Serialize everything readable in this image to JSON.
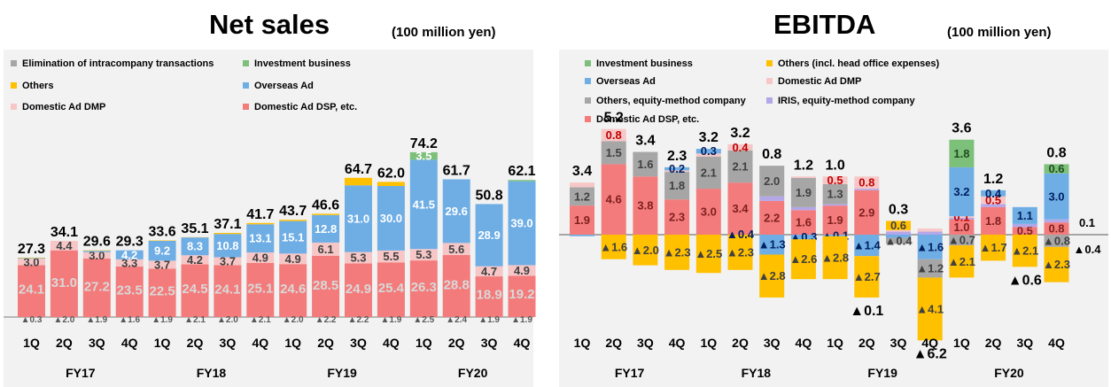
{
  "colors": {
    "dsp": "#f37b7b",
    "dmp": "#f7c7c7",
    "overseas": "#6faee5",
    "others": "#ffc000",
    "investment": "#7cc07a",
    "elim": "#a6a6a6",
    "iris": "#b4a7e8",
    "neg": "#ffc000"
  },
  "left": {
    "title": "Net sales",
    "unit": "(100 million yen)",
    "legend": [
      {
        "label": "Elimination of intracompany transactions",
        "color": "#a6a6a6"
      },
      {
        "label": "Investment business",
        "color": "#7cc07a"
      },
      {
        "label": "Others",
        "color": "#ffc000"
      },
      {
        "label": "Overseas Ad",
        "color": "#6faee5"
      },
      {
        "label": "Domestic Ad DMP",
        "color": "#f7c7c7"
      },
      {
        "label": "Domestic Ad DSP, etc.",
        "color": "#f37b7b"
      }
    ]
  },
  "right": {
    "title": "EBITDA",
    "unit": "(100 million yen)",
    "legend": [
      {
        "label": "Investment business",
        "color": "#7cc07a"
      },
      {
        "label": "Others (incl.  head office expenses)",
        "color": "#ffc000"
      },
      {
        "label": "Overseas Ad",
        "color": "#6faee5"
      },
      {
        "label": "Domestic Ad DMP",
        "color": "#f7c7c7"
      },
      {
        "label": "Others, equity-method company",
        "color": "#a6a6a6"
      },
      {
        "label": "IRIS, equity-method company",
        "color": "#b4a7e8"
      },
      {
        "label": "Domestic Ad DSP, etc.",
        "color": "#f37b7b"
      }
    ]
  },
  "chart_data": [
    {
      "type": "bar",
      "stacked": true,
      "title": "Net sales",
      "unit": "(100 million yen)",
      "categories": [
        "1Q",
        "2Q",
        "3Q",
        "4Q",
        "1Q",
        "2Q",
        "3Q",
        "4Q",
        "1Q",
        "2Q",
        "3Q",
        "4Q",
        "1Q",
        "2Q",
        "3Q",
        "4Q"
      ],
      "groups": [
        {
          "label": "FY17",
          "span": [
            0,
            3
          ]
        },
        {
          "label": "FY18",
          "span": [
            4,
            7
          ]
        },
        {
          "label": "FY19",
          "span": [
            8,
            11
          ]
        },
        {
          "label": "FY20",
          "span": [
            12,
            15
          ]
        }
      ],
      "series": [
        {
          "name": "Domestic Ad DSP, etc.",
          "key": "dsp",
          "values": [
            24.1,
            31.0,
            27.2,
            23.5,
            22.5,
            24.5,
            24.1,
            25.1,
            24.6,
            28.5,
            24.9,
            25.4,
            26.3,
            28.8,
            18.9,
            19.2
          ],
          "labels": [
            "24.1",
            "31.0",
            "27.2",
            "23.5",
            "22.5",
            "24.5",
            "24.1",
            "25.1",
            "24.6",
            "28.5",
            "24.9",
            "25.4",
            "26.3",
            "28.8",
            "18.9",
            "19.2"
          ]
        },
        {
          "name": "Domestic Ad DMP",
          "key": "dmp",
          "values": [
            3.0,
            4.4,
            3.0,
            3.3,
            3.7,
            4.2,
            3.7,
            4.9,
            4.9,
            6.1,
            5.3,
            5.5,
            5.3,
            5.6,
            4.7,
            4.9
          ],
          "labels": [
            "3.0",
            "4.4",
            "3.0",
            "3.3",
            "3.7",
            "4.2",
            "3.7",
            "4.9",
            "4.9",
            "6.1",
            "5.3",
            "5.5",
            "5.3",
            "5.6",
            "4.7",
            "4.9"
          ]
        },
        {
          "name": "Overseas Ad",
          "key": "overseas",
          "values": [
            0.3,
            0.0,
            0.6,
            4.2,
            9.2,
            8.3,
            10.8,
            13.1,
            15.1,
            12.8,
            31.0,
            30.0,
            41.5,
            29.6,
            28.9,
            39.0
          ],
          "labels": [
            "",
            "",
            "",
            "4.2",
            "9.2",
            "8.3",
            "10.8",
            "13.1",
            "15.1",
            "12.8",
            "31.0",
            "30.0",
            "41.5",
            "29.6",
            "28.9",
            "39.0"
          ]
        },
        {
          "name": "Others",
          "key": "others",
          "values": [
            0.2,
            0.0,
            0.2,
            0.0,
            0.2,
            0.1,
            0.5,
            0.6,
            0.6,
            0.6,
            3.5,
            1.9,
            0.0,
            0.0,
            0.0,
            0.0
          ],
          "labels": []
        },
        {
          "name": "Investment business",
          "key": "investment",
          "values": [
            0,
            0,
            0,
            0,
            0,
            0,
            0,
            0,
            0,
            0,
            0,
            0,
            3.5,
            0,
            0,
            0.6
          ],
          "labels": [
            "",
            "",
            "",
            "",
            "",
            "",
            "",
            "",
            "",
            "",
            "",
            "",
            "3.5",
            "",
            "",
            ""
          ]
        },
        {
          "name": "Elimination of intracompany transactions",
          "key": "elim",
          "values": [
            -0.3,
            -2.0,
            -1.9,
            -1.6,
            -1.9,
            -2.1,
            -2.0,
            -2.1,
            -2.0,
            -2.2,
            -2.2,
            -1.9,
            -2.5,
            -2.4,
            -1.9,
            -1.9
          ],
          "labels": [
            "▲0.3",
            "▲2.0",
            "▲1.9",
            "▲1.6",
            "▲1.9",
            "▲2.1",
            "▲2.0",
            "▲2.1",
            "▲2.0",
            "▲2.2",
            "▲2.2",
            "▲1.9",
            "▲2.5",
            "▲2.4",
            "▲1.9",
            "▲1.9"
          ]
        }
      ],
      "totals": [
        "27.3",
        "34.1",
        "29.6",
        "29.3",
        "33.6",
        "35.1",
        "37.1",
        "41.7",
        "43.7",
        "46.6",
        "64.7",
        "62.0",
        "74.2",
        "61.7",
        "50.8",
        "62.1"
      ],
      "total_values": [
        27.3,
        34.1,
        29.6,
        29.3,
        33.6,
        35.1,
        37.1,
        41.7,
        43.7,
        46.6,
        64.7,
        62.0,
        74.2,
        61.7,
        50.8,
        62.1
      ]
    },
    {
      "type": "bar",
      "stacked": true,
      "title": "EBITDA",
      "unit": "(100 million yen)",
      "categories": [
        "1Q",
        "2Q",
        "3Q",
        "4Q",
        "1Q",
        "2Q",
        "3Q",
        "4Q",
        "1Q",
        "2Q",
        "3Q",
        "4Q",
        "1Q",
        "2Q",
        "3Q",
        "4Q"
      ],
      "groups": [
        {
          "label": "FY17",
          "span": [
            0,
            3
          ]
        },
        {
          "label": "FY18",
          "span": [
            4,
            7
          ]
        },
        {
          "label": "FY19",
          "span": [
            8,
            11
          ]
        },
        {
          "label": "FY20",
          "span": [
            12,
            15
          ]
        }
      ],
      "positive_series": [
        {
          "name": "Domestic Ad DSP, etc.",
          "key": "dsp",
          "values": [
            1.9,
            4.6,
            3.8,
            2.3,
            3.0,
            3.4,
            2.2,
            1.6,
            1.9,
            2.9,
            0.0,
            0.0,
            1.0,
            1.8,
            0.5,
            0.8
          ],
          "labels": [
            "1.9",
            "4.6",
            "3.8",
            "2.3",
            "3.0",
            "3.4",
            "2.2",
            "1.6",
            "1.9",
            "2.9",
            "",
            "",
            "1.0",
            "1.8",
            "0.5",
            "0.8"
          ]
        },
        {
          "name": "IRIS, equity-method company",
          "key": "iris",
          "values": [
            0,
            0,
            0,
            0,
            0,
            0,
            0.3,
            0.2,
            0.1,
            0.1,
            0.2,
            0.2,
            0.1,
            0.2,
            0.2,
            0.2
          ],
          "labels": []
        },
        {
          "name": "Others, equity-method company",
          "key": "elim",
          "values": [
            1.2,
            1.5,
            1.6,
            1.8,
            2.1,
            2.1,
            2.0,
            1.9,
            1.3,
            0,
            0,
            0,
            0,
            0,
            0,
            0
          ],
          "labels": [
            "1.2",
            "1.5",
            "1.6",
            "1.8",
            "2.1",
            "2.1",
            "2.0",
            "1.9",
            "1.3",
            "",
            "",
            "",
            "",
            "",
            "",
            ""
          ]
        },
        {
          "name": "Domestic Ad DMP",
          "key": "dmp",
          "values": [
            0.3,
            0.8,
            0.0,
            0.1,
            0.2,
            0.4,
            0.0,
            0.1,
            0.5,
            0.8,
            0.1,
            0.2,
            0.1,
            0.5,
            0.0,
            0.0
          ],
          "labels": [
            "",
            "0.8",
            "",
            "",
            "",
            "0.4",
            "",
            "",
            "0.5",
            "0.8",
            "",
            "",
            "0.1",
            "0.5",
            "",
            ""
          ]
        },
        {
          "name": "Overseas Ad",
          "key": "overseas",
          "values": [
            0.0,
            0.0,
            0.0,
            0.2,
            0.3,
            0.0,
            0.0,
            0.0,
            0.0,
            0.0,
            0.0,
            0.0,
            3.2,
            0.4,
            1.1,
            3.0
          ],
          "labels": [
            "",
            "",
            "",
            "0.2",
            "0.3",
            "",
            "",
            "",
            "",
            "",
            "",
            "",
            "3.2",
            "0.4",
            "1.1",
            "3.0"
          ]
        },
        {
          "name": "Investment business",
          "key": "investment",
          "values": [
            0,
            0,
            0,
            0,
            0,
            0,
            0,
            0,
            0,
            0,
            0,
            0,
            1.8,
            0,
            0,
            0.6
          ],
          "labels": [
            "",
            "",
            "",
            "",
            "",
            "",
            "",
            "",
            "",
            "",
            "",
            "",
            "1.8",
            "",
            "",
            "0.6"
          ]
        },
        {
          "name": "Others (incl.  head office expenses)",
          "key": "others",
          "values": [
            0,
            0,
            0,
            0,
            0,
            0,
            0,
            0,
            0,
            0,
            0.6,
            0,
            0,
            0,
            0,
            0
          ],
          "labels": [
            "",
            "",
            "",
            "",
            "",
            "",
            "",
            "",
            "",
            "",
            "0.6",
            "",
            "",
            "",
            "",
            ""
          ]
        }
      ],
      "negative_series": [
        {
          "name": "Overseas Ad",
          "key": "overseas",
          "values": [
            -0.1,
            0,
            0,
            0,
            0,
            0,
            -1.3,
            -0.3,
            -0.1,
            -1.4,
            -0.2,
            -1.6,
            0,
            0,
            0,
            0
          ],
          "labels": [
            "",
            "",
            "",
            "",
            "",
            "",
            "▲1.3",
            "▲0.3",
            "▲0.1",
            "▲1.4",
            "",
            "▲1.6",
            "",
            "",
            "",
            ""
          ]
        },
        {
          "name": "Others, equity-method company",
          "key": "elim",
          "values": [
            0,
            0,
            0,
            0,
            0,
            0,
            0,
            0,
            0,
            0,
            -0.4,
            -1.2,
            -0.7,
            0,
            0,
            -0.8
          ],
          "labels": [
            "",
            "",
            "",
            "",
            "",
            "",
            "",
            "",
            "",
            "",
            "▲0.4",
            "▲1.2",
            "▲0.7",
            "",
            "",
            "▲0.8"
          ]
        },
        {
          "name": "Domestic Ad DSP, etc.",
          "key": "dsp",
          "values": [
            0,
            0,
            0,
            0,
            0,
            0,
            0,
            0,
            0,
            0,
            0,
            0,
            0,
            0,
            0,
            0
          ],
          "labels": []
        },
        {
          "name": "Others (incl.  head office expenses)",
          "key": "others",
          "values": [
            0,
            -1.6,
            -2.0,
            -2.3,
            -2.5,
            -2.3,
            -2.8,
            -2.6,
            -2.8,
            -2.7,
            0,
            -4.1,
            -2.1,
            -1.7,
            -2.1,
            -2.3
          ],
          "labels": [
            "",
            "▲1.6",
            "▲2.0",
            "▲2.3",
            "▲2.5",
            "▲2.3",
            "▲2.8",
            "▲2.6",
            "▲2.8",
            "▲2.7",
            "",
            "▲4.1",
            "▲2.1",
            "▲1.7",
            "▲2.1",
            "▲2.3"
          ]
        }
      ],
      "extra_labels": [
        "",
        "",
        "",
        "",
        "",
        "▲0.4",
        "",
        "",
        "",
        "",
        "",
        "",
        "",
        "",
        "",
        ""
      ],
      "totals": [
        "3.4",
        "5.2",
        "3.4",
        "2.3",
        "3.2",
        "3.2",
        "0.8",
        "1.2",
        "1.0",
        "▲0.1",
        "0.3",
        "▲6.2",
        "3.6",
        "1.2",
        "▲0.6",
        "0.8"
      ],
      "total_values": [
        3.4,
        5.2,
        3.4,
        2.3,
        3.2,
        3.2,
        0.8,
        1.2,
        1.0,
        -0.1,
        0.3,
        -6.2,
        3.6,
        1.2,
        -0.6,
        0.8
      ],
      "side_labels": [
        "0.1",
        "▲0.4"
      ]
    }
  ]
}
